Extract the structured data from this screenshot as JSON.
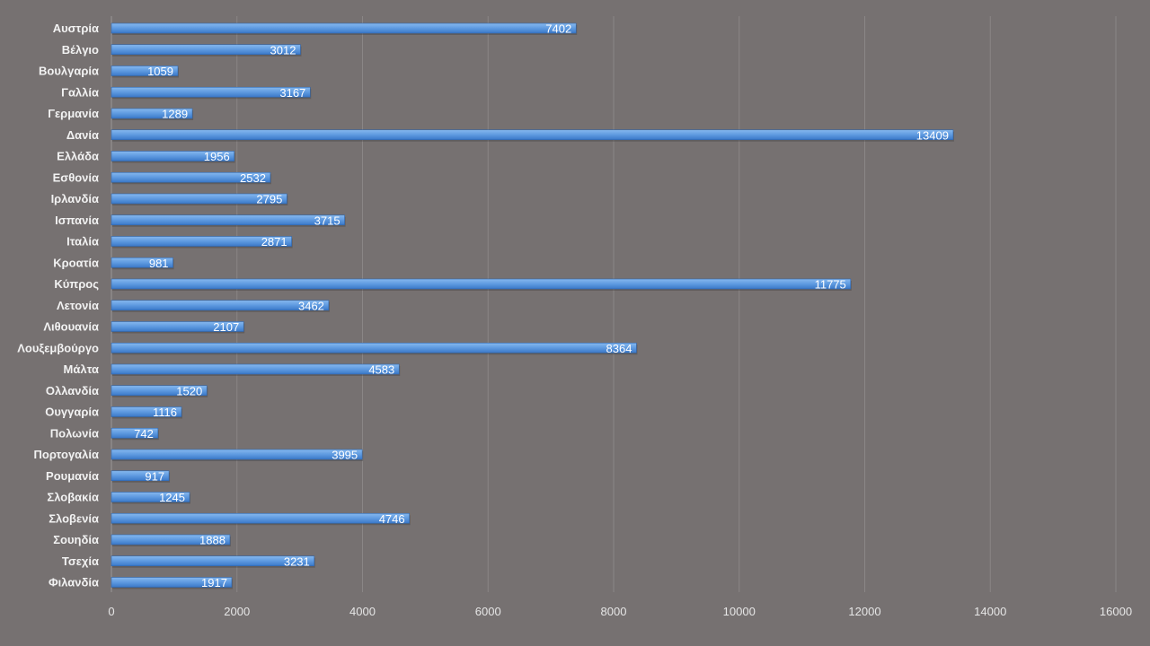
{
  "colors": {
    "background": "#767171",
    "bar_top": "#7fb2ea",
    "bar_bottom": "#3f7fcf",
    "gridline": "#8a8686",
    "text": "#f2f2f2"
  },
  "chart_data": {
    "type": "bar",
    "orientation": "horizontal",
    "title": "",
    "xlabel": "",
    "ylabel": "",
    "xlim": [
      0,
      16000
    ],
    "grid": true,
    "legend": "none",
    "x_ticks": [
      0,
      2000,
      4000,
      6000,
      8000,
      10000,
      12000,
      14000,
      16000
    ],
    "categories": [
      "Αυστρία",
      "Βέλγιο",
      "Βουλγαρία",
      "Γαλλία",
      "Γερμανία",
      "Δανία",
      "Ελλάδα",
      "Εσθονία",
      "Ιρλανδία",
      "Ισπανία",
      "Ιταλία",
      "Κροατία",
      "Κύπρος",
      "Λετονία",
      "Λιθουανία",
      "Λουξεμβούργο",
      "Μάλτα",
      "Ολλανδία",
      "Ουγγαρία",
      "Πολωνία",
      "Πορτογαλία",
      "Ρουμανία",
      "Σλοβακία",
      "Σλοβενία",
      "Σουηδία",
      "Τσεχία",
      "Φιλανδία"
    ],
    "values": [
      7402,
      3012,
      1059,
      3167,
      1289,
      13409,
      1956,
      2532,
      2795,
      3715,
      2871,
      981,
      11775,
      3462,
      2107,
      8364,
      4583,
      1520,
      1116,
      742,
      3995,
      917,
      1245,
      4746,
      1888,
      3231,
      1917
    ]
  }
}
